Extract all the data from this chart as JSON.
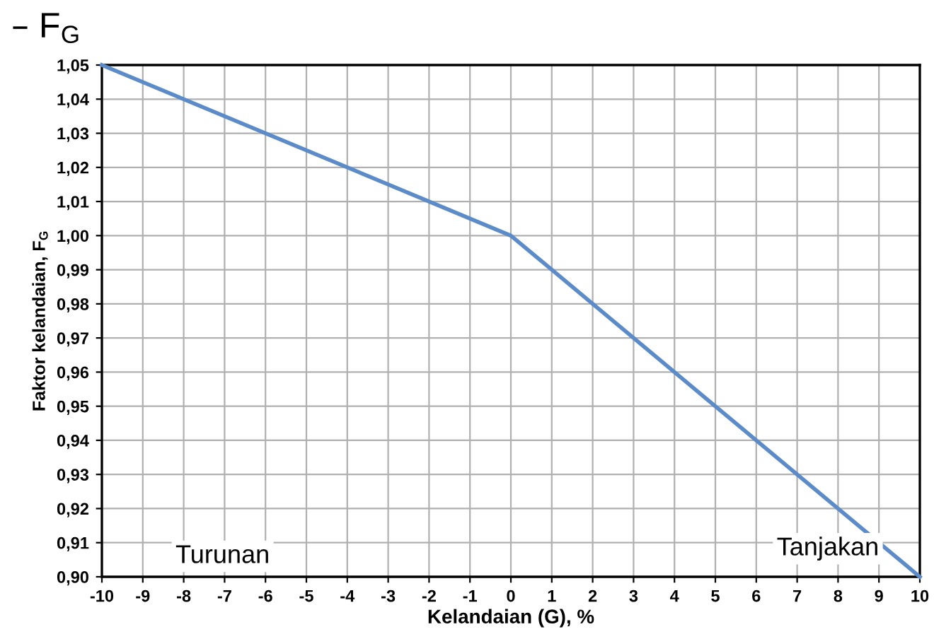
{
  "chart_data": {
    "type": "line",
    "title": "– F$_{G}$",
    "xlabel": "Kelandaian (G), %",
    "ylabel": "Faktor kelandaian, F$_{G}$",
    "x": [
      -10,
      0,
      10
    ],
    "series": [
      {
        "color": "#5b8bc8",
        "values": [
          1.05,
          1.0,
          0.9
        ]
      }
    ],
    "xlim": [
      -10,
      10
    ],
    "xticks": [
      -10,
      -9,
      -8,
      -7,
      -6,
      -5,
      -4,
      -3,
      -2,
      -1,
      0,
      1,
      2,
      3,
      4,
      5,
      6,
      7,
      8,
      9,
      10
    ],
    "ylim": [
      0.9,
      1.05
    ],
    "yticks": [
      {
        "value": 0.9,
        "label": "0,90"
      },
      {
        "value": 0.91,
        "label": "0,91"
      },
      {
        "value": 0.92,
        "label": "0,92"
      },
      {
        "value": 0.93,
        "label": "0,93"
      },
      {
        "value": 0.94,
        "label": "0,94"
      },
      {
        "value": 0.95,
        "label": "0,95"
      },
      {
        "value": 0.96,
        "label": "0,96"
      },
      {
        "value": 0.97,
        "label": "0,97"
      },
      {
        "value": 0.98,
        "label": "0,98"
      },
      {
        "value": 0.99,
        "label": "0,99"
      },
      {
        "value": 1.0,
        "label": "1,00"
      },
      {
        "value": 1.01,
        "label": "1,01"
      },
      {
        "value": 1.02,
        "label": "1,02"
      },
      {
        "value": 1.03,
        "label": "1,03"
      },
      {
        "value": 1.04,
        "label": "1,04"
      },
      {
        "value": 1.05,
        "label": "1,05"
      }
    ],
    "grid": true,
    "marker": "none",
    "line_style": "solid",
    "annotations": [
      "Turunan",
      "Tanjakan"
    ]
  }
}
